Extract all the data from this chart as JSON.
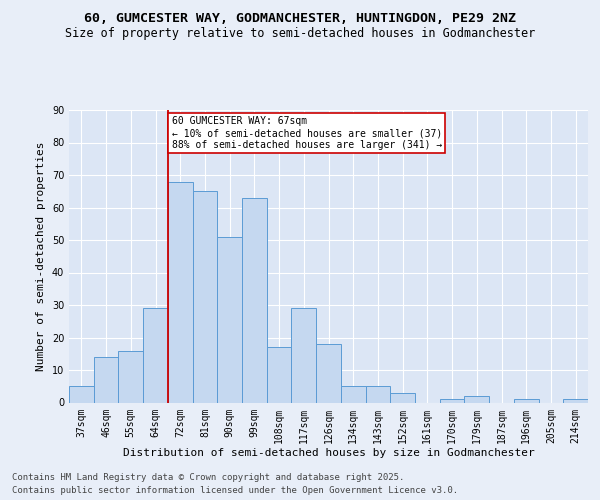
{
  "title1": "60, GUMCESTER WAY, GODMANCHESTER, HUNTINGDON, PE29 2NZ",
  "title2": "Size of property relative to semi-detached houses in Godmanchester",
  "xlabel": "Distribution of semi-detached houses by size in Godmanchester",
  "ylabel": "Number of semi-detached properties",
  "categories": [
    "37sqm",
    "46sqm",
    "55sqm",
    "64sqm",
    "72sqm",
    "81sqm",
    "90sqm",
    "99sqm",
    "108sqm",
    "117sqm",
    "126sqm",
    "134sqm",
    "143sqm",
    "152sqm",
    "161sqm",
    "170sqm",
    "179sqm",
    "187sqm",
    "196sqm",
    "205sqm",
    "214sqm"
  ],
  "values": [
    5,
    14,
    16,
    29,
    68,
    65,
    51,
    63,
    17,
    29,
    18,
    5,
    5,
    3,
    0,
    1,
    2,
    0,
    1,
    0,
    1
  ],
  "bar_color": "#c5d8f0",
  "bar_edge_color": "#5b9bd5",
  "vline_index": 3.5,
  "marker_label": "60 GUMCESTER WAY: 67sqm",
  "annotation_line1": "← 10% of semi-detached houses are smaller (37)",
  "annotation_line2": "88% of semi-detached houses are larger (341) →",
  "vline_color": "#cc0000",
  "annotation_box_edge": "#cc0000",
  "ylim": [
    0,
    90
  ],
  "yticks": [
    0,
    10,
    20,
    30,
    40,
    50,
    60,
    70,
    80,
    90
  ],
  "footer1": "Contains HM Land Registry data © Crown copyright and database right 2025.",
  "footer2": "Contains public sector information licensed under the Open Government Licence v3.0.",
  "bg_color": "#e8eef8",
  "plot_bg_color": "#dce6f5",
  "title_fontsize": 9.5,
  "subtitle_fontsize": 8.5,
  "axis_label_fontsize": 8,
  "tick_fontsize": 7,
  "annotation_fontsize": 7,
  "footer_fontsize": 6.5
}
